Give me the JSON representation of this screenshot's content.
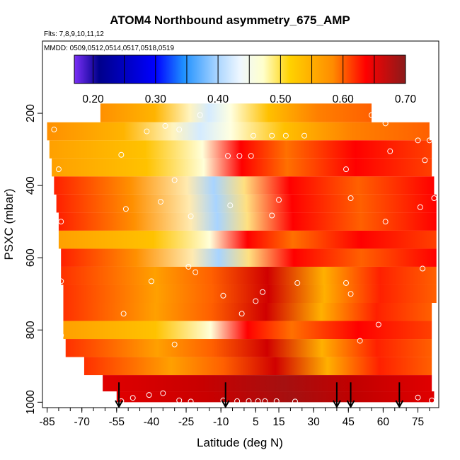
{
  "chart_data": {
    "type": "heatmap",
    "title": "ATOM4 Northbound asymmetry_675_AMP",
    "flights_label": "Flts: 7,8,9,10,11,12",
    "dates_label": "MMDD: 0509,0512,0514,0517,0518,0519",
    "xlabel": "Latitude (deg N)",
    "ylabel": "PSXC (mbar)",
    "xlim": [
      -87,
      84
    ],
    "ylim": [
      1015,
      0
    ],
    "xticks": [
      -85,
      -70,
      -55,
      -40,
      -25,
      -10,
      5,
      15,
      30,
      45,
      60,
      75
    ],
    "xtick_labels": [
      "-85",
      "-70",
      "-55",
      "-40",
      "-25",
      "-10",
      "5",
      "15",
      "30",
      "45",
      "60",
      "75"
    ],
    "yticks": [
      200,
      400,
      600,
      800,
      1000
    ],
    "ytick_labels": [
      "200",
      "400",
      "600",
      "800",
      "1000"
    ],
    "colorbar": {
      "range": [
        0.17,
        0.7
      ],
      "ticks": [
        0.2,
        0.3,
        0.4,
        0.5,
        0.6,
        0.7
      ],
      "tick_labels": [
        "0.20",
        "0.30",
        "0.40",
        "0.50",
        "0.60",
        "0.70"
      ],
      "colors": [
        "#7b2ff7",
        "#00008b",
        "#1e90ff",
        "#cfe8ff",
        "#ffffd0",
        "#ffd200",
        "#ff8c00",
        "#ff0000",
        "#8b1a1a"
      ]
    },
    "rows": [
      {
        "p": 200,
        "xmin": -62,
        "xmax": 55
      },
      {
        "p": 250,
        "xmin": -85,
        "xmax": 80
      },
      {
        "p": 300,
        "xmin": -84,
        "xmax": 81
      },
      {
        "p": 350,
        "xmin": -83,
        "xmax": 81
      },
      {
        "p": 400,
        "xmin": -82,
        "xmax": 82
      },
      {
        "p": 450,
        "xmin": -81,
        "xmax": 83
      },
      {
        "p": 500,
        "xmin": -80,
        "xmax": 83
      },
      {
        "p": 550,
        "xmin": -80,
        "xmax": 83
      },
      {
        "p": 600,
        "xmin": -79,
        "xmax": 83
      },
      {
        "p": 650,
        "xmin": -79,
        "xmax": 83
      },
      {
        "p": 700,
        "xmin": -78,
        "xmax": 83
      },
      {
        "p": 750,
        "xmin": -78,
        "xmax": 81
      },
      {
        "p": 800,
        "xmin": -78,
        "xmax": 81
      },
      {
        "p": 850,
        "xmin": -77,
        "xmax": 81
      },
      {
        "p": 900,
        "xmin": -69,
        "xmax": 81
      },
      {
        "p": 950,
        "xmin": -61,
        "xmax": 81
      },
      {
        "p": 990,
        "xmin": -55,
        "xmax": 82
      }
    ],
    "samples": [
      {
        "lat": -86,
        "p": 210
      },
      {
        "lat": -71,
        "p": 205
      },
      {
        "lat": -82,
        "p": 245
      },
      {
        "lat": -42,
        "p": 250
      },
      {
        "lat": -34,
        "p": 235
      },
      {
        "lat": -28,
        "p": 245
      },
      {
        "lat": -19,
        "p": 205
      },
      {
        "lat": 4,
        "p": 262
      },
      {
        "lat": 12,
        "p": 262
      },
      {
        "lat": 18,
        "p": 262
      },
      {
        "lat": 26,
        "p": 262
      },
      {
        "lat": 55,
        "p": 205
      },
      {
        "lat": 61,
        "p": 228
      },
      {
        "lat": 68,
        "p": 205
      },
      {
        "lat": 76,
        "p": 207
      },
      {
        "lat": -53,
        "p": 315
      },
      {
        "lat": -7,
        "p": 318
      },
      {
        "lat": -2,
        "p": 318
      },
      {
        "lat": 3,
        "p": 318
      },
      {
        "lat": 63,
        "p": 305
      },
      {
        "lat": 75,
        "p": 275
      },
      {
        "lat": 80,
        "p": 275
      },
      {
        "lat": 78,
        "p": 330
      },
      {
        "lat": -80,
        "p": 355
      },
      {
        "lat": 44,
        "p": 355
      },
      {
        "lat": -30,
        "p": 385
      },
      {
        "lat": -36,
        "p": 445
      },
      {
        "lat": 15,
        "p": 440
      },
      {
        "lat": 46,
        "p": 435
      },
      {
        "lat": 82,
        "p": 435
      },
      {
        "lat": -51,
        "p": 465
      },
      {
        "lat": -23,
        "p": 485
      },
      {
        "lat": -6,
        "p": 455
      },
      {
        "lat": 76,
        "p": 460
      },
      {
        "lat": -79,
        "p": 500
      },
      {
        "lat": 12,
        "p": 483
      },
      {
        "lat": 61,
        "p": 500
      },
      {
        "lat": -24,
        "p": 625
      },
      {
        "lat": -21,
        "p": 640
      },
      {
        "lat": 77,
        "p": 630
      },
      {
        "lat": -79,
        "p": 665
      },
      {
        "lat": -40,
        "p": 665
      },
      {
        "lat": 23,
        "p": 670
      },
      {
        "lat": 44,
        "p": 670
      },
      {
        "lat": 8,
        "p": 695
      },
      {
        "lat": 46,
        "p": 700
      },
      {
        "lat": -9,
        "p": 705
      },
      {
        "lat": 5,
        "p": 720
      },
      {
        "lat": -1,
        "p": 755
      },
      {
        "lat": -52,
        "p": 755
      },
      {
        "lat": 58,
        "p": 785
      },
      {
        "lat": -79,
        "p": 815
      },
      {
        "lat": 50,
        "p": 830
      },
      {
        "lat": -30,
        "p": 840
      },
      {
        "lat": -53,
        "p": 997
      },
      {
        "lat": -48,
        "p": 988
      },
      {
        "lat": -41,
        "p": 980
      },
      {
        "lat": -35,
        "p": 975
      },
      {
        "lat": -28,
        "p": 995
      },
      {
        "lat": -23,
        "p": 998
      },
      {
        "lat": -9,
        "p": 995
      },
      {
        "lat": -3,
        "p": 997
      },
      {
        "lat": 2,
        "p": 997
      },
      {
        "lat": 6,
        "p": 997
      },
      {
        "lat": 9,
        "p": 997
      },
      {
        "lat": 14,
        "p": 997
      },
      {
        "lat": 22,
        "p": 998
      },
      {
        "lat": 75,
        "p": 987
      },
      {
        "lat": 81,
        "p": 995
      }
    ],
    "arrows_lat": [
      -54,
      -8,
      40,
      46,
      67
    ]
  }
}
